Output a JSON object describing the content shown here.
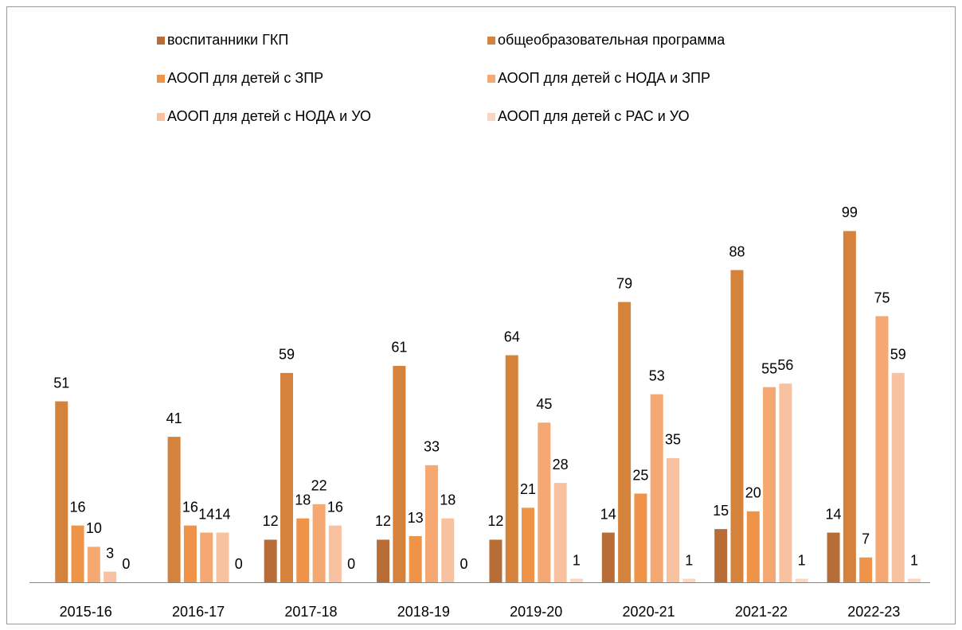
{
  "chart_data": {
    "type": "bar",
    "categories": [
      "2015-16",
      "2016-17",
      "2017-18",
      "2018-19",
      "2019-20",
      "2020-21",
      "2021-22",
      "2022-23"
    ],
    "series": [
      {
        "name": "воспитанники ГКП",
        "color": "#b86d37",
        "values": [
          null,
          null,
          12,
          12,
          12,
          14,
          15,
          14
        ]
      },
      {
        "name": "общеобразовательная программа",
        "color": "#d5823c",
        "values": [
          51,
          41,
          59,
          61,
          64,
          79,
          88,
          99
        ]
      },
      {
        "name": "АООП для детей с ЗПР",
        "color": "#ee9347",
        "values": [
          16,
          16,
          18,
          13,
          21,
          25,
          20,
          7
        ]
      },
      {
        "name": "АООП для детей с НОДА и ЗПР",
        "color": "#f6a872",
        "values": [
          10,
          14,
          22,
          33,
          45,
          53,
          55,
          75
        ]
      },
      {
        "name": "АООП для детей с НОДА и УО",
        "color": "#f8c1a0",
        "values": [
          3,
          14,
          16,
          18,
          28,
          35,
          56,
          59
        ]
      },
      {
        "name": "АООП для детей с РАС и УО",
        "color": "#fad6c0",
        "values": [
          0,
          0,
          0,
          0,
          1,
          1,
          1,
          1
        ]
      }
    ]
  }
}
